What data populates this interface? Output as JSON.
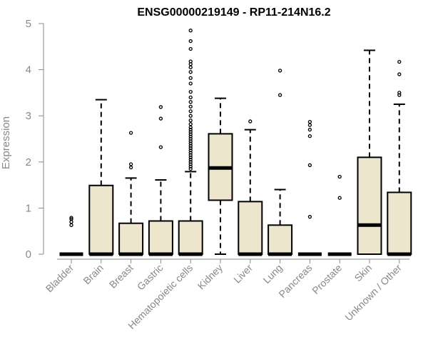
{
  "chart_data": {
    "type": "boxplot",
    "title": "ENSG00000219149 - RP11-214N16.2",
    "xlabel": "",
    "ylabel": "Expression",
    "ylim": [
      0,
      5
    ],
    "yticks": [
      0,
      1,
      2,
      3,
      4,
      5
    ],
    "grid": false,
    "box_fill": "#ede6cc",
    "categories": [
      "Bladder",
      "Brain",
      "Breast",
      "Gastric",
      "Hematopoietic cells",
      "Kidney",
      "Liver",
      "Lung",
      "Pancreas",
      "Prostate",
      "Skin",
      "Unknown / Other"
    ],
    "boxes": [
      {
        "min": 0,
        "q1": 0,
        "median": 0,
        "q3": 0,
        "max": 0,
        "outliers": [
          0.63,
          0.7,
          0.76,
          0.79
        ]
      },
      {
        "min": 0,
        "q1": 0,
        "median": 0,
        "q3": 1.49,
        "max": 3.35,
        "outliers": []
      },
      {
        "min": 0,
        "q1": 0,
        "median": 0,
        "q3": 0.67,
        "max": 1.65,
        "outliers": [
          1.88,
          1.95,
          2.63
        ]
      },
      {
        "min": 0,
        "q1": 0,
        "median": 0,
        "q3": 0.72,
        "max": 1.61,
        "outliers": [
          2.32,
          2.94,
          3.19
        ]
      },
      {
        "min": 0,
        "q1": 0,
        "median": 0,
        "q3": 0.72,
        "max": 1.79,
        "outliers": [
          1.85,
          1.9,
          1.95,
          2.0,
          2.05,
          2.1,
          2.15,
          2.2,
          2.25,
          2.3,
          2.35,
          2.4,
          2.45,
          2.5,
          2.55,
          2.6,
          2.65,
          2.7,
          2.75,
          2.82,
          2.9,
          3.0,
          3.1,
          3.2,
          3.3,
          3.4,
          3.52,
          3.7,
          3.82,
          3.95,
          4.05,
          4.12,
          4.18,
          4.45,
          4.62,
          4.85
        ]
      },
      {
        "min": 0,
        "q1": 1.17,
        "median": 1.87,
        "q3": 2.61,
        "max": 3.38,
        "outliers": []
      },
      {
        "min": 0,
        "q1": 0,
        "median": 0,
        "q3": 1.14,
        "max": 2.7,
        "outliers": [
          2.88
        ]
      },
      {
        "min": 0,
        "q1": 0,
        "median": 0,
        "q3": 0.63,
        "max": 1.4,
        "outliers": [
          3.45,
          3.98
        ]
      },
      {
        "min": 0,
        "q1": 0,
        "median": 0,
        "q3": 0,
        "max": 0,
        "outliers": [
          0.81,
          1.93,
          2.56,
          2.7,
          2.8,
          2.87
        ]
      },
      {
        "min": 0,
        "q1": 0,
        "median": 0,
        "q3": 0,
        "max": 0,
        "outliers": [
          1.22,
          1.68
        ]
      },
      {
        "min": 0,
        "q1": 0,
        "median": 0.63,
        "q3": 2.1,
        "max": 4.42,
        "outliers": []
      },
      {
        "min": 0,
        "q1": 0,
        "median": 0,
        "q3": 1.34,
        "max": 3.25,
        "outliers": [
          3.45,
          3.5,
          3.9,
          4.17
        ]
      }
    ]
  }
}
